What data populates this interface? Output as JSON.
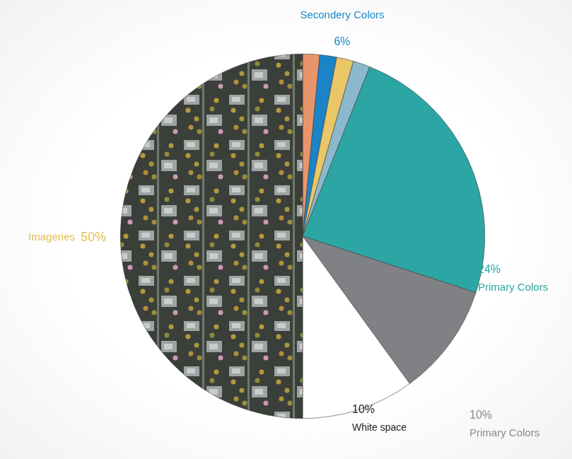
{
  "chart_data": {
    "type": "pie",
    "slices": [
      {
        "label": "Secondery Colors",
        "value": 6,
        "value_label": "6%",
        "parts": [
          {
            "color": "#e8956b",
            "value": 1.5
          },
          {
            "color": "#1a84c7",
            "value": 1.5
          },
          {
            "color": "#eac766",
            "value": 1.5
          },
          {
            "color": "#8bb8cc",
            "value": 1.5
          }
        ]
      },
      {
        "label": "Primary Colors",
        "value": 24,
        "value_label": "24%",
        "color": "#2ca6a4"
      },
      {
        "label": "Primary Colors",
        "value": 10,
        "value_label": "10%",
        "color": "#808184"
      },
      {
        "label": "White space",
        "value": 10,
        "value_label": "10%",
        "color": "#ffffff"
      },
      {
        "label": "Imageries",
        "value": 50,
        "value_label": "50%",
        "color": "#3b3f3a"
      }
    ]
  }
}
